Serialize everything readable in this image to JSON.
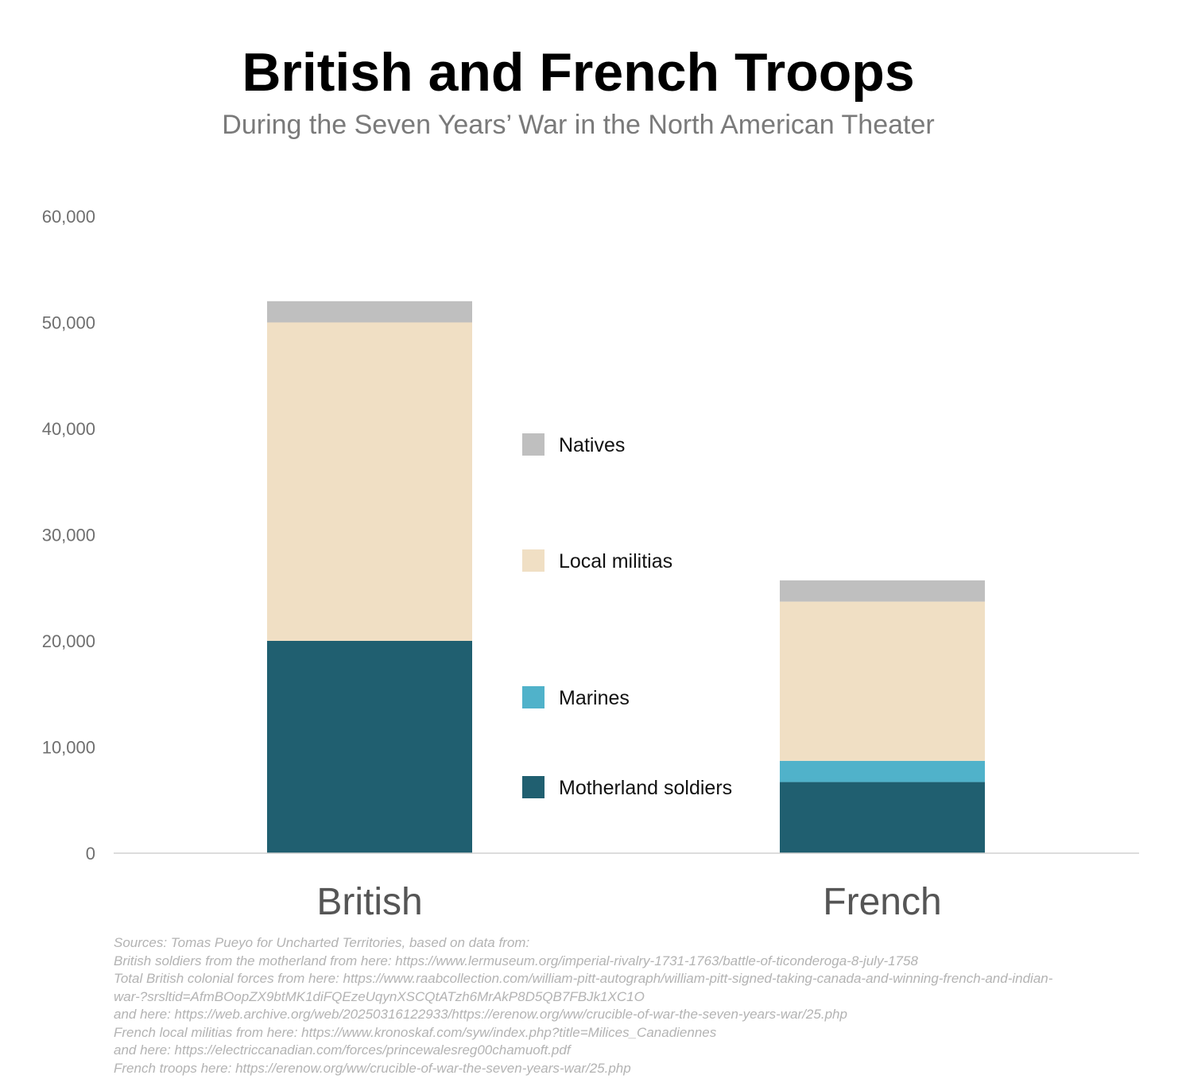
{
  "chart_data": {
    "type": "bar",
    "stacked": true,
    "title": "British and French Troops",
    "subtitle": "During the Seven Years’ War in the North American Theater",
    "categories": [
      "British",
      "French"
    ],
    "series": [
      {
        "name": "Motherland soldiers",
        "color": "#205f70",
        "values": [
          20000,
          6700
        ]
      },
      {
        "name": "Marines",
        "color": "#50b2ca",
        "values": [
          0,
          2000
        ]
      },
      {
        "name": "Local militias",
        "color": "#f0dfc4",
        "values": [
          30000,
          15000
        ]
      },
      {
        "name": "Natives",
        "color": "#bfbfbf",
        "values": [
          2000,
          2000
        ]
      }
    ],
    "legend_order": [
      "Natives",
      "Local militias",
      "Marines",
      "Motherland soldiers"
    ],
    "legend_placement": "center",
    "ylim": [
      0,
      60000
    ],
    "yticks": [
      0,
      10000,
      20000,
      30000,
      40000,
      50000,
      60000
    ],
    "ytick_labels": [
      "0",
      "10,000",
      "20,000",
      "30,000",
      "40,000",
      "50,000",
      "60,000"
    ],
    "grid": false,
    "xlabel": "",
    "ylabel": ""
  },
  "sources": [
    "Sources: Tomas Pueyo for Uncharted Territories, based on data from:",
    "British soldiers from the motherland from here: https://www.lermuseum.org/imperial-rivalry-1731-1763/battle-of-ticonderoga-8-july-1758",
    "Total British colonial forces from here: https://www.raabcollection.com/william-pitt-autograph/william-pitt-signed-taking-canada-and-winning-french-and-indian-",
    "war-?srsltid=AfmBOopZX9btMK1diFQEzeUqynXSCQtATzh6MrAkP8D5QB7FBJk1XC1O",
    "and here: https://web.archive.org/web/20250316122933/https://erenow.org/ww/crucible-of-war-the-seven-years-war/25.php",
    "French local militias from here: https://www.kronoskaf.com/syw/index.php?title=Milices_Canadiennes",
    "and here: https://electriccanadian.com/forces/princewalesreg00chamuoft.pdf",
    "French troops here: https://erenow.org/ww/crucible-of-war-the-seven-years-war/25.php"
  ]
}
